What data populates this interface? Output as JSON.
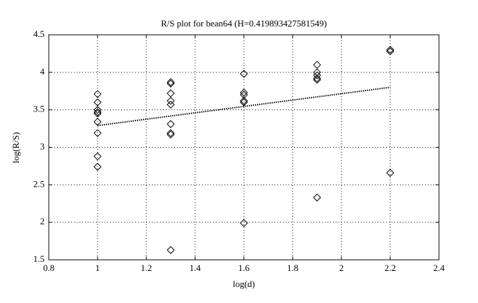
{
  "chart_data": {
    "type": "scatter",
    "title": "R/S plot for bean64 (H=0.419893427581549)",
    "x_label": "log(d)",
    "y_label": "log(R/S)",
    "xlim": [
      0.8,
      2.4
    ],
    "xticks": [
      0.8,
      1,
      1.2,
      1.4,
      1.6,
      1.8,
      2,
      2.2,
      2.4
    ],
    "ylim": [
      1.5,
      4.5
    ],
    "yticks": [
      1.5,
      2,
      2.5,
      3,
      3.5,
      4,
      4.5
    ],
    "grid": true,
    "series": [
      {
        "color": "#000000",
        "marker": "diamond",
        "x": [
          1,
          1,
          1,
          1,
          1,
          1,
          1,
          1,
          1,
          1.3,
          1.3,
          1.3,
          1.3,
          1.3,
          1.3,
          1.3,
          1.3,
          1.3,
          1.6,
          1.6,
          1.6,
          1.6,
          1.6,
          1.6,
          1.9,
          1.9,
          1.9,
          1.9,
          1.9,
          1.9,
          2.2,
          2.2,
          2.2
        ],
        "values": [
          3.71,
          3.6,
          3.5,
          3.47,
          3.45,
          3.34,
          3.19,
          2.88,
          2.74,
          3.87,
          3.85,
          3.72,
          3.62,
          3.57,
          3.31,
          3.19,
          3.17,
          1.63,
          3.98,
          3.73,
          3.7,
          3.62,
          3.6,
          1.99,
          4.1,
          4.0,
          3.96,
          3.92,
          3.9,
          2.33,
          4.3,
          4.28,
          2.66
        ]
      }
    ],
    "fit": {
      "color": "#000000",
      "x": [
        1,
        2.2
      ],
      "values": [
        3.29,
        3.8
      ]
    }
  }
}
